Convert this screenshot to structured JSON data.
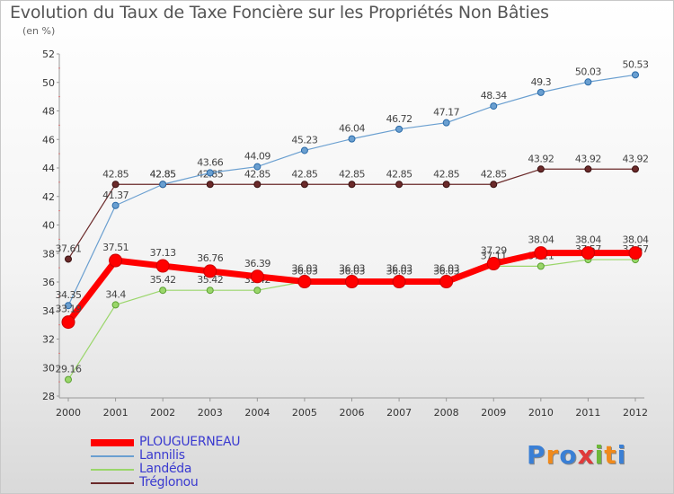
{
  "title": "Evolution du Taux de Taxe Foncière sur les Propriétés Non Bâties",
  "unit": "(en %)",
  "logo": {
    "text": "Proxiti",
    "colors": [
      "#3a7fd5",
      "#f08a1c",
      "#3a7fd5",
      "#e03a3a",
      "#6db83a",
      "#f08a1c",
      "#3a7fd5"
    ]
  },
  "chart_data": {
    "type": "line",
    "title": "Evolution du Taux de Taxe Foncière sur les Propriétés Non Bâties",
    "ylabel": "(en %)",
    "ylim": [
      28,
      52
    ],
    "yticks": [
      28,
      30,
      32,
      34,
      36,
      38,
      40,
      42,
      44,
      46,
      48,
      50,
      52
    ],
    "x": [
      "2000",
      "2001",
      "2002",
      "2003",
      "2004",
      "2005",
      "2006",
      "2007",
      "2008",
      "2009",
      "2010",
      "2011",
      "2012"
    ],
    "grid": false,
    "legend_position": "bottom-left",
    "series": [
      {
        "name": "Tréglonou",
        "color": "#6b2a2a",
        "labels": [
          "37.61",
          "42.85",
          "42.85",
          "42.85",
          "42.85",
          "42.85",
          "42.85",
          "42.85",
          "42.85",
          "42.85",
          "43.92",
          "43.92",
          "43.92"
        ],
        "values": [
          37.61,
          42.85,
          42.85,
          42.85,
          42.85,
          42.85,
          42.85,
          42.85,
          42.85,
          42.85,
          43.92,
          43.92,
          43.92
        ],
        "width": 1.2,
        "marker": 3.5
      },
      {
        "name": "Lannilis",
        "color": "#6a9fd0",
        "labels": [
          "34.35",
          "41.37",
          "42.85",
          "43.66",
          "44.09",
          "45.23",
          "46.04",
          "46.72",
          "47.17",
          "48.34",
          "49.3",
          "50.03",
          "50.53"
        ],
        "values": [
          34.35,
          41.37,
          42.85,
          43.66,
          44.09,
          45.23,
          46.04,
          46.72,
          47.17,
          48.34,
          49.3,
          50.03,
          50.53
        ],
        "width": 1.2,
        "marker": 3.5
      },
      {
        "name": "Landéda",
        "color": "#9ad66a",
        "labels": [
          "29.16",
          "34.4",
          "35.42",
          "35.42",
          "35.42",
          "36.03",
          "36.03",
          "36.03",
          "36.03",
          "37.11",
          "37.11",
          "37.57",
          "37.57"
        ],
        "values": [
          29.16,
          34.4,
          35.42,
          35.42,
          35.42,
          36.03,
          36.03,
          36.03,
          36.03,
          37.11,
          37.11,
          37.57,
          37.57
        ],
        "width": 1.2,
        "marker": 3.5
      },
      {
        "name": "PLOUGUERNEAU",
        "color": "#ff0000",
        "labels": [
          "33.19",
          "37.51",
          "37.13",
          "36.76",
          "36.39",
          "36.03",
          "36.03",
          "36.03",
          "36.03",
          "37.29",
          "38.04",
          "38.04",
          "38.04"
        ],
        "values": [
          33.19,
          37.51,
          37.13,
          36.76,
          36.39,
          36.03,
          36.03,
          36.03,
          36.03,
          37.29,
          38.04,
          38.04,
          38.04
        ],
        "width": 7,
        "marker": 7
      }
    ],
    "legend_order": [
      "PLOUGUERNEAU",
      "Lannilis",
      "Landéda",
      "Tréglonou"
    ]
  }
}
